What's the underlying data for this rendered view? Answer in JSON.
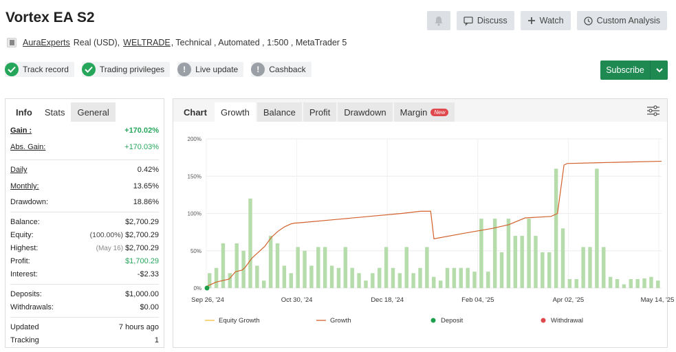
{
  "header": {
    "title": "Vortex EA S2",
    "actions": {
      "discuss": "Discuss",
      "watch": "Watch",
      "custom": "Custom Analysis"
    }
  },
  "meta": {
    "owner": "AuraExperts",
    "account": "Real (USD),",
    "broker": "WELTRADE",
    "details": ", Technical , Automated , 1:500 , MetaTrader 5"
  },
  "badges": [
    {
      "label": "Track record",
      "icon": "check-icon",
      "status": "ok"
    },
    {
      "label": "Trading privileges",
      "icon": "check-icon",
      "status": "ok"
    },
    {
      "label": "Live update",
      "icon": "exclamation-icon",
      "status": "gray"
    },
    {
      "label": "Cashback",
      "icon": "exclamation-icon",
      "status": "gray"
    }
  ],
  "subscribe": {
    "label": "Subscribe"
  },
  "stats_tabs": [
    "Info",
    "Stats",
    "General"
  ],
  "stats": {
    "gain": {
      "label": "Gain :",
      "value": "+170.02%"
    },
    "abs_gain": {
      "label": "Abs. Gain:",
      "value": "+170.03%"
    },
    "daily": {
      "label": "Daily",
      "value": "0.42%"
    },
    "monthly": {
      "label": "Monthly:",
      "value": "13.65%"
    },
    "drawdown": {
      "label": "Drawdown:",
      "value": "18.86%"
    },
    "balance": {
      "label": "Balance:",
      "value": "$2,700.29"
    },
    "equity": {
      "label": "Equity:",
      "note": "(100.00%)",
      "value": "$2,700.29"
    },
    "highest": {
      "label": "Highest:",
      "note": "(May 16)",
      "value": "$2,700.29"
    },
    "profit": {
      "label": "Profit:",
      "value": "$1,700.29"
    },
    "interest": {
      "label": "Interest:",
      "value": "-$2.33"
    },
    "deposits": {
      "label": "Deposits:",
      "value": "$1,000.00"
    },
    "withdrawals": {
      "label": "Withdrawals:",
      "value": "$0.00"
    },
    "updated": {
      "label": "Updated",
      "value": "7 hours ago"
    },
    "tracking": {
      "label": "Tracking",
      "value": "1"
    }
  },
  "chart_tabs": {
    "chart": "Chart",
    "growth": "Growth",
    "balance": "Balance",
    "profit": "Profit",
    "drawdown": "Drawdown",
    "margin": "Margin",
    "new_badge": "New"
  },
  "colors": {
    "bars": "#b5dcaa",
    "growth_line": "#d2602a",
    "equity_line": "#f0c040",
    "deposit": "#1e9e4a",
    "withdrawal": "#e0474c",
    "gain_green": "#26a65b",
    "subscribe_bg": "#1e8a52"
  },
  "chart_data": {
    "type": "bar",
    "x_tick_labels": [
      "Sep 26, '24",
      "Oct 30, '24",
      "Dec 18, '24",
      "Feb 04, '25",
      "Apr 02, '25",
      "May 14, '25"
    ],
    "y_tick_labels": [
      "0%",
      "50%",
      "100%",
      "150%",
      "200%"
    ],
    "ylim": [
      0,
      200
    ],
    "grid": true,
    "legend_position": "bottom",
    "legend": [
      "Equity Growth",
      "Growth",
      "Deposit",
      "Withdrawal"
    ],
    "bars": [
      20,
      27,
      60,
      20,
      60,
      50,
      120,
      30,
      10,
      70,
      60,
      30,
      20,
      55,
      50,
      30,
      55,
      55,
      30,
      27,
      55,
      27,
      20,
      10,
      20,
      27,
      55,
      27,
      20,
      55,
      20,
      27,
      55,
      15,
      10,
      27,
      27,
      27,
      27,
      22,
      93,
      22,
      93,
      48,
      93,
      70,
      70,
      93,
      70,
      48,
      48,
      160,
      80,
      12,
      12,
      55,
      55,
      160,
      55,
      15,
      12,
      5,
      12,
      12,
      13,
      15,
      10
    ],
    "growth_line": [
      [
        0,
        2
      ],
      [
        3,
        8
      ],
      [
        7,
        12
      ],
      [
        9,
        22
      ],
      [
        11,
        24
      ],
      [
        12,
        28
      ],
      [
        14,
        40
      ],
      [
        16,
        48
      ],
      [
        18,
        56
      ],
      [
        20,
        68
      ],
      [
        22,
        76
      ],
      [
        24,
        82
      ],
      [
        26,
        86
      ],
      [
        27,
        87
      ],
      [
        30,
        88
      ],
      [
        40,
        92
      ],
      [
        50,
        96
      ],
      [
        60,
        100
      ],
      [
        66,
        103
      ],
      [
        69,
        103
      ],
      [
        70,
        66
      ],
      [
        80,
        74
      ],
      [
        88,
        80
      ],
      [
        93,
        85
      ],
      [
        98,
        94
      ],
      [
        106,
        96
      ],
      [
        108,
        100
      ],
      [
        110,
        165
      ],
      [
        111,
        167
      ],
      [
        120,
        168
      ],
      [
        130,
        169
      ],
      [
        140,
        170
      ]
    ],
    "deposits": [
      [
        0,
        0
      ]
    ]
  }
}
